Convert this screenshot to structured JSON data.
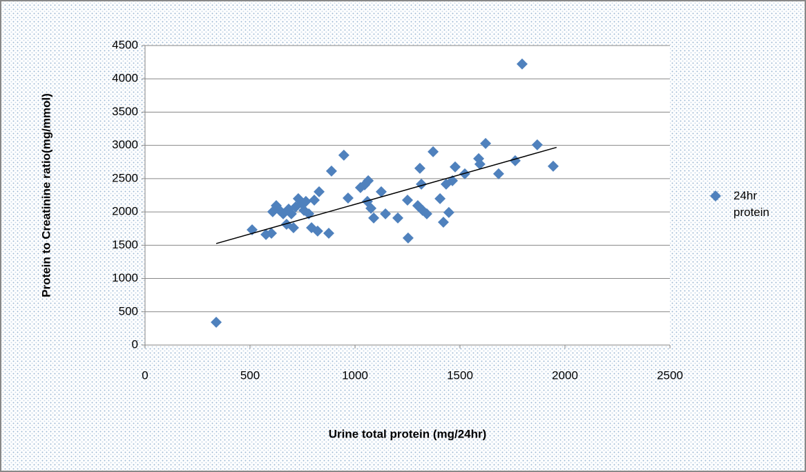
{
  "chart_data": {
    "type": "scatter",
    "xlabel": "Urine total protein (mg/24hr)",
    "ylabel": "Protein to Creatinine ratio(mg/mmol)",
    "xlim": [
      0,
      2500
    ],
    "xticks": [
      0,
      500,
      1000,
      1500,
      2000,
      2500
    ],
    "ylim": [
      0,
      4500
    ],
    "yticks": [
      0,
      500,
      1000,
      1500,
      2000,
      2500,
      3000,
      3500,
      4000,
      4500
    ],
    "grid": true,
    "legend": "right",
    "series": [
      {
        "name": "24hr protein",
        "color": "#4f81bd",
        "x": [
          339,
          510,
          576,
          602,
          608,
          625,
          641,
          658,
          674,
          684,
          697,
          707,
          717,
          730,
          747,
          757,
          766,
          780,
          793,
          806,
          822,
          829,
          875,
          888,
          947,
          967,
          1026,
          1046,
          1063,
          1059,
          1076,
          1089,
          1125,
          1145,
          1204,
          1250,
          1253,
          1299,
          1309,
          1316,
          1322,
          1342,
          1372,
          1405,
          1421,
          1434,
          1447,
          1464,
          1477,
          1523,
          1589,
          1595,
          1622,
          1684,
          1763,
          1796,
          1868,
          1944
        ],
        "values": [
          342,
          1732,
          1660,
          1680,
          2002,
          2095,
          2023,
          1971,
          1815,
          2043,
          1971,
          1763,
          2075,
          2199,
          2127,
          2023,
          2158,
          1971,
          1763,
          2178,
          1712,
          2303,
          1680,
          2614,
          2853,
          2209,
          2365,
          2407,
          2469,
          2158,
          2054,
          1909,
          2303,
          1971,
          1909,
          2178,
          1608,
          2095,
          2656,
          2417,
          2023,
          1971,
          2905,
          2199,
          1846,
          2417,
          1992,
          2469,
          2676,
          2573,
          2801,
          2718,
          3029,
          2573,
          2770,
          4222,
          3008,
          2687
        ]
      }
    ],
    "trendline": {
      "color": "#000000",
      "x": [
        339,
        1960
      ],
      "values": [
        1525,
        2970
      ]
    }
  }
}
